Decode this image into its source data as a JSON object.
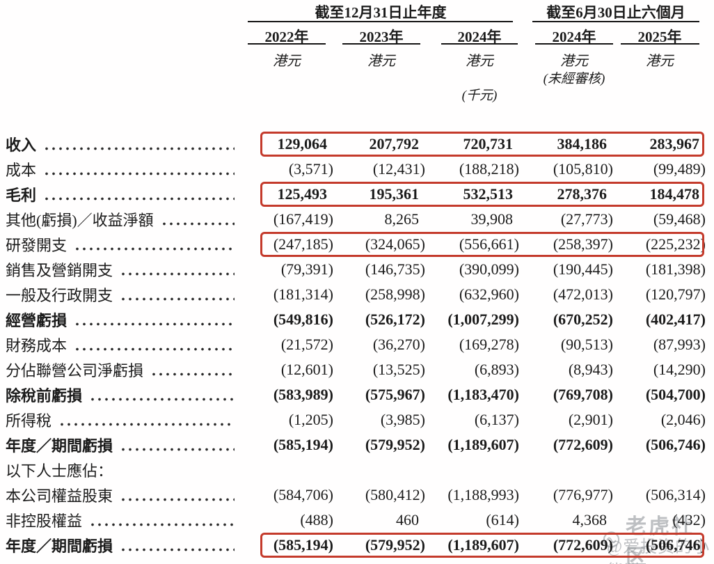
{
  "table": {
    "col_groups": [
      {
        "title": "截至12月31日止年度"
      },
      {
        "title": "截至6月30日止六個月"
      }
    ],
    "columns": [
      {
        "year": "2022年",
        "unit": "港元",
        "note": ""
      },
      {
        "year": "2023年",
        "unit": "港元",
        "note": ""
      },
      {
        "year": "2024年",
        "unit": "港元",
        "note": "(千元)"
      },
      {
        "year": "2024年",
        "unit": "港元",
        "note": "(未經審核)"
      },
      {
        "year": "2025年",
        "unit": "港元",
        "note": ""
      }
    ],
    "rows": [
      {
        "label": "收入",
        "values": [
          "129,064",
          "207,792",
          "720,731",
          "384,186",
          "283,967"
        ],
        "bold": true,
        "boxed": true,
        "dots": true
      },
      {
        "label": "成本",
        "values": [
          "(3,571)",
          "(12,431)",
          "(188,218)",
          "(105,810)",
          "(99,489)"
        ],
        "bold": false,
        "boxed": false,
        "dots": true
      },
      {
        "label": "毛利",
        "values": [
          "125,493",
          "195,361",
          "532,513",
          "278,376",
          "184,478"
        ],
        "bold": true,
        "boxed": true,
        "dots": true
      },
      {
        "label": "其他(虧損)／收益淨額",
        "values": [
          "(167,419)",
          "8,265",
          "39,908",
          "(27,773)",
          "(59,468)"
        ],
        "bold": false,
        "boxed": false,
        "dots": true
      },
      {
        "label": "研發開支",
        "values": [
          "(247,185)",
          "(324,065)",
          "(556,661)",
          "(258,397)",
          "(225,232)"
        ],
        "bold": false,
        "boxed": true,
        "dots": true
      },
      {
        "label": "銷售及營銷開支",
        "values": [
          "(79,391)",
          "(146,735)",
          "(390,099)",
          "(190,445)",
          "(181,398)"
        ],
        "bold": false,
        "boxed": false,
        "dots": true
      },
      {
        "label": "一般及行政開支",
        "values": [
          "(181,314)",
          "(258,998)",
          "(632,960)",
          "(472,013)",
          "(120,797)"
        ],
        "bold": false,
        "boxed": false,
        "dots": true
      },
      {
        "label": "經營虧損",
        "values": [
          "(549,816)",
          "(526,172)",
          "(1,007,299)",
          "(670,252)",
          "(402,417)"
        ],
        "bold": true,
        "boxed": false,
        "dots": true
      },
      {
        "label": "財務成本",
        "values": [
          "(21,572)",
          "(36,270)",
          "(169,278)",
          "(90,513)",
          "(87,993)"
        ],
        "bold": false,
        "boxed": false,
        "dots": true
      },
      {
        "label": "分佔聯營公司淨虧損",
        "values": [
          "(12,601)",
          "(13,525)",
          "(6,893)",
          "(8,943)",
          "(14,290)"
        ],
        "bold": false,
        "boxed": false,
        "dots": true
      },
      {
        "label": "除稅前虧損",
        "values": [
          "(583,989)",
          "(575,967)",
          "(1,183,470)",
          "(769,708)",
          "(504,700)"
        ],
        "bold": true,
        "boxed": false,
        "dots": true
      },
      {
        "label": "所得稅",
        "values": [
          "(1,205)",
          "(3,985)",
          "(6,137)",
          "(2,901)",
          "(2,046)"
        ],
        "bold": false,
        "boxed": false,
        "dots": true
      },
      {
        "label": "年度／期間虧損",
        "values": [
          "(585,194)",
          "(579,952)",
          "(1,189,607)",
          "(772,609)",
          "(506,746)"
        ],
        "bold": true,
        "boxed": false,
        "dots": true
      },
      {
        "label": "以下人士應佔：",
        "values": [],
        "bold": false,
        "boxed": false,
        "dots": false
      },
      {
        "label": "本公司權益股東",
        "values": [
          "(584,706)",
          "(580,412)",
          "(1,188,993)",
          "(776,977)",
          "(506,314)"
        ],
        "bold": false,
        "boxed": false,
        "dots": true
      },
      {
        "label": "非控股權益",
        "values": [
          "(488)",
          "460",
          "(614)",
          "4,368",
          "(432)"
        ],
        "bold": false,
        "boxed": false,
        "dots": true
      },
      {
        "label": "年度／期間虧損",
        "values": [
          "(585,194)",
          "(579,952)",
          "(1,189,607)",
          "(772,609)",
          "(506,746)"
        ],
        "bold": true,
        "boxed": true,
        "dots": true
      }
    ]
  },
  "watermark": {
    "brand": "老虎社区",
    "handle": "@爱投资的小熊猫"
  },
  "colors": {
    "highlight_box": "#c43a2b",
    "text": "#1b1b1b",
    "watermark": "#94979c"
  }
}
